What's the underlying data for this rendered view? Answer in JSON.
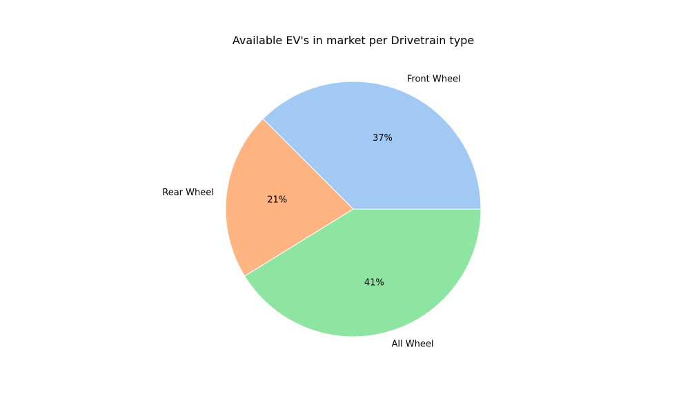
{
  "chart_data": {
    "type": "pie",
    "title": "Available EV's in market per Drivetrain type",
    "start_angle_deg": 0,
    "direction": "counterclockwise",
    "slices": [
      {
        "label": "Front Wheel",
        "value": 37.5,
        "pct_label": "37%",
        "color": "#a1c9f4"
      },
      {
        "label": "Rear Wheel",
        "value": 21.3,
        "pct_label": "21%",
        "color": "#ffb482"
      },
      {
        "label": "All Wheel",
        "value": 41.2,
        "pct_label": "41%",
        "color": "#8de5a1"
      }
    ]
  }
}
